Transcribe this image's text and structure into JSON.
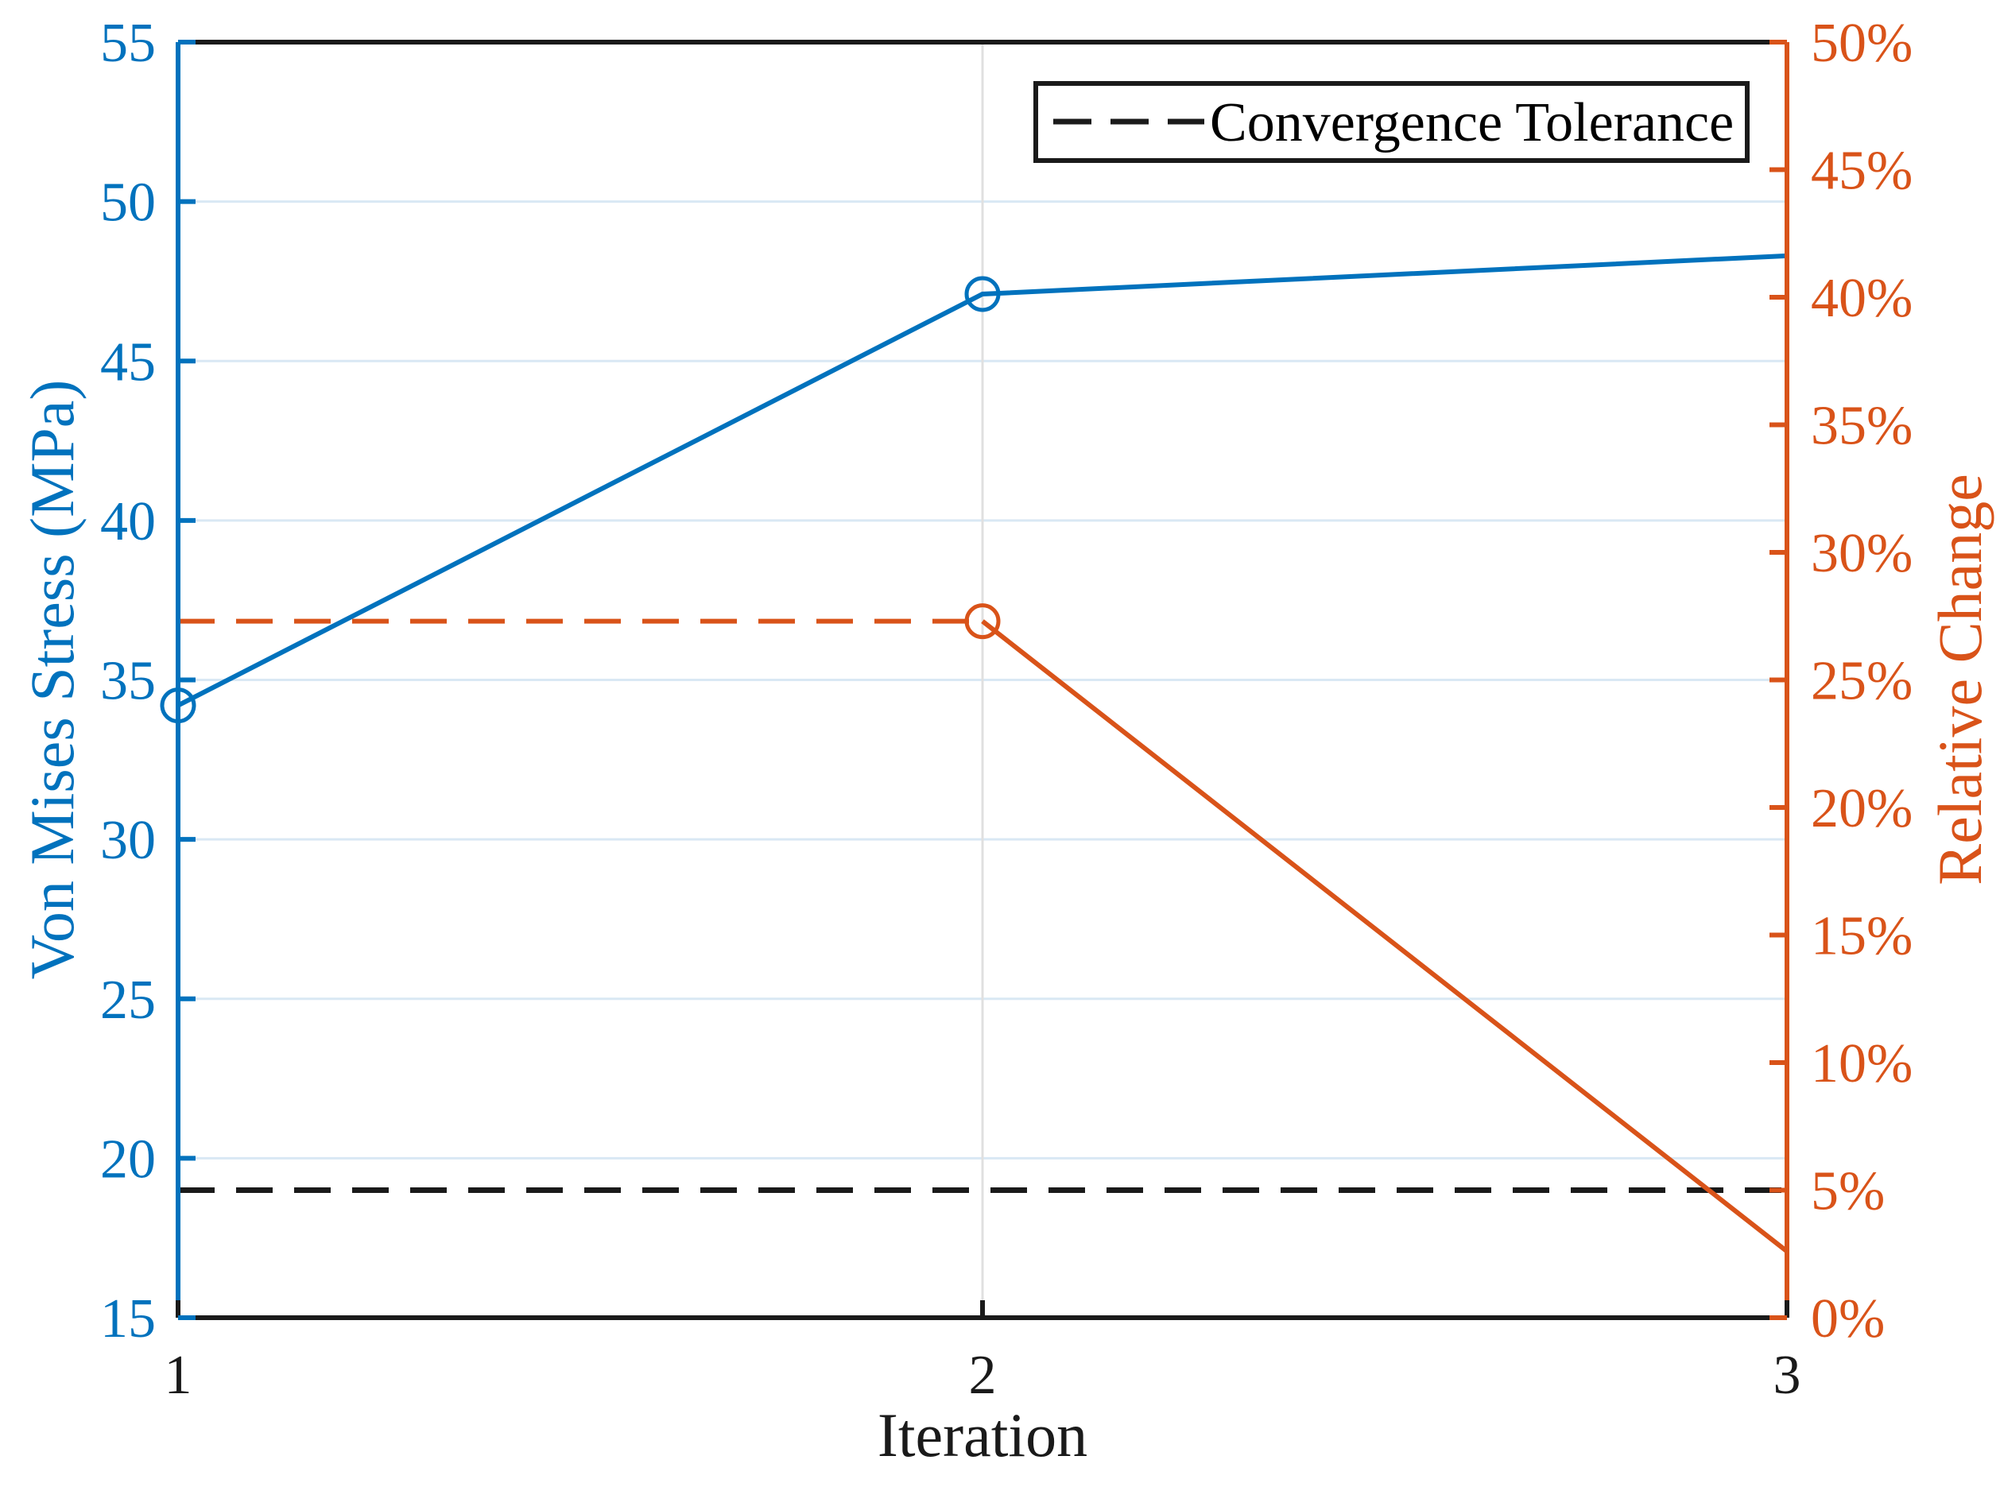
{
  "chart_data": {
    "type": "line",
    "title": "",
    "xlabel": "Iteration",
    "x_ticks": [
      1,
      2,
      3
    ],
    "xlim": [
      1,
      3
    ],
    "left_axis": {
      "label": "Von Mises Stress (MPa)",
      "color": "#0072BD",
      "lim": [
        15,
        55
      ],
      "ticks": [
        15,
        20,
        25,
        30,
        35,
        40,
        45,
        50,
        55
      ]
    },
    "right_axis": {
      "label": "Relative Change",
      "color": "#D95319",
      "lim_percent": [
        0,
        50
      ],
      "ticks_percent": [
        0,
        5,
        10,
        15,
        20,
        25,
        30,
        35,
        40,
        45,
        50
      ],
      "tick_suffix": "%"
    },
    "series": [
      {
        "name": "von-mises-stress",
        "axis": "left",
        "style": "solid",
        "color": "#0072BD",
        "x": [
          1,
          2,
          3
        ],
        "values": [
          34.2,
          47.1,
          48.3
        ],
        "marker_x": [
          1,
          2
        ]
      },
      {
        "name": "relative-change-leadin",
        "axis": "right",
        "style": "dashed",
        "color": "#D95319",
        "x": [
          1,
          2
        ],
        "values": [
          27.3,
          27.3
        ],
        "marker_x": []
      },
      {
        "name": "relative-change",
        "axis": "right",
        "style": "solid",
        "color": "#D95319",
        "x": [
          2,
          3
        ],
        "values": [
          27.3,
          2.6
        ],
        "marker_x": [
          2
        ]
      }
    ],
    "reference_lines": [
      {
        "name": "convergence-tolerance",
        "axis": "right",
        "value": 5,
        "style": "dashed",
        "color": "#1a1a1a"
      }
    ],
    "grid": {
      "horizontal_at_left_ticks": [
        20,
        25,
        30,
        35,
        40,
        45,
        50
      ],
      "vertical_at_x": [
        2
      ],
      "horizontal_color": "#d9e8f4",
      "vertical_color": "#e0e0e0"
    },
    "axis_box_color": "#1a1a1a",
    "legend_position": "top-right"
  },
  "legend": {
    "items": [
      {
        "label": "Convergence Tolerance",
        "style": "dashed",
        "color": "#1a1a1a"
      }
    ]
  }
}
